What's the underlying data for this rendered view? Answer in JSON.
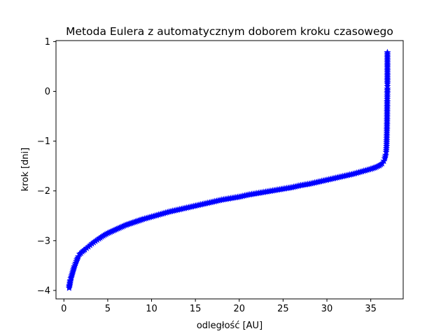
{
  "chart_data": {
    "type": "scatter",
    "title": "Metoda Eulera z automatycznym doborem kroku czasowego",
    "xlabel": "odległość [AU]",
    "ylabel": "krok [dni]",
    "xlim": [
      -0.9,
      38.7
    ],
    "ylim": [
      -4.17,
      1.02
    ],
    "xticks": [
      0,
      5,
      10,
      15,
      20,
      25,
      30,
      35
    ],
    "yticks": [
      -4,
      -3,
      -2,
      -1,
      0,
      1
    ],
    "xtick_labels": [
      "0",
      "5",
      "10",
      "15",
      "20",
      "25",
      "30",
      "35"
    ],
    "ytick_labels": [
      "−4",
      "−3",
      "−2",
      "−1",
      "0",
      "1"
    ],
    "grid": false,
    "marker": "star",
    "color": "#0000ff",
    "series": [
      {
        "x": [
          0.6,
          0.62,
          0.65,
          0.68,
          0.7,
          0.72,
          0.75,
          0.8,
          0.9,
          1.0,
          1.1,
          1.2,
          1.35,
          1.5,
          1.65,
          1.8,
          1.95,
          2.1,
          2.4,
          2.8,
          3.2,
          3.6,
          4.0,
          4.5,
          5.0,
          5.5,
          6.0,
          6.5,
          7.0,
          7.5,
          8.0,
          9.0,
          10.0,
          11.0,
          12.0,
          13.0,
          14.0,
          15.0,
          16.0,
          17.0,
          18.0,
          19.0,
          20.0,
          21.0,
          22.0,
          23.0,
          24.0,
          25.0,
          26.0,
          27.0,
          28.0,
          29.0,
          30.0,
          31.0,
          32.0,
          33.0,
          34.0,
          35.0,
          35.5,
          36.0,
          36.3,
          36.5,
          36.6,
          36.7,
          36.75,
          36.8,
          36.82,
          36.84,
          36.86,
          36.87,
          36.88,
          36.89,
          36.9,
          36.9,
          36.9,
          36.9,
          36.9,
          36.9,
          36.9
        ],
        "y": [
          -3.95,
          -3.92,
          -3.9,
          -3.87,
          -3.85,
          -3.82,
          -3.8,
          -3.76,
          -3.7,
          -3.64,
          -3.58,
          -3.52,
          -3.45,
          -3.38,
          -3.32,
          -3.27,
          -3.25,
          -3.22,
          -3.18,
          -3.12,
          -3.06,
          -3.01,
          -2.96,
          -2.9,
          -2.85,
          -2.81,
          -2.77,
          -2.73,
          -2.69,
          -2.66,
          -2.63,
          -2.57,
          -2.52,
          -2.47,
          -2.42,
          -2.38,
          -2.34,
          -2.3,
          -2.26,
          -2.22,
          -2.18,
          -2.15,
          -2.12,
          -2.08,
          -2.05,
          -2.02,
          -1.99,
          -1.96,
          -1.93,
          -1.89,
          -1.86,
          -1.82,
          -1.78,
          -1.74,
          -1.7,
          -1.66,
          -1.61,
          -1.56,
          -1.53,
          -1.49,
          -1.45,
          -1.4,
          -1.35,
          -1.28,
          -1.22,
          -1.1,
          -0.95,
          -0.8,
          -0.6,
          -0.4,
          -0.2,
          -0.05,
          0.05,
          0.1,
          0.15,
          0.25,
          0.35,
          0.45,
          0.78
        ]
      }
    ]
  }
}
